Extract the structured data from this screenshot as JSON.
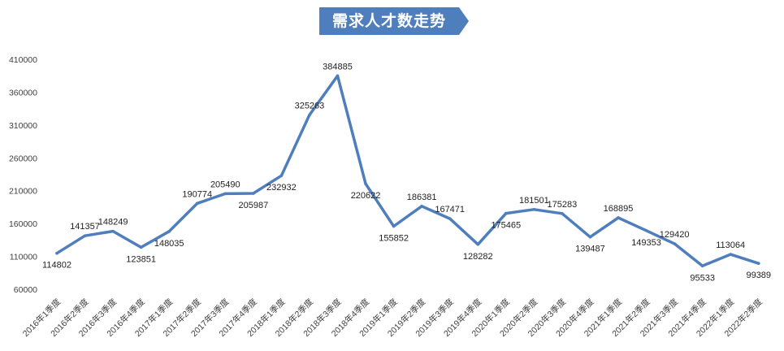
{
  "chart_data": {
    "type": "line",
    "title": "需求人才数走势",
    "xlabel": "",
    "ylabel": "",
    "ylim": [
      60000,
      410000
    ],
    "yticks": [
      60000,
      110000,
      160000,
      210000,
      260000,
      310000,
      360000,
      410000
    ],
    "ytick_labels": [
      "60000",
      "110000",
      "160000",
      "210000",
      "260000",
      "310000",
      "360000",
      "410000"
    ],
    "grid": false,
    "legend": "none",
    "categories": [
      "2016年1季度",
      "2016年2季度",
      "2016年3季度",
      "2016年4季度",
      "2017年1季度",
      "2017年2季度",
      "2017年3季度",
      "2017年4季度",
      "2018年1季度",
      "2018年2季度",
      "2018年3季度",
      "2018年4季度",
      "2019年1季度",
      "2019年2季度",
      "2019年3季度",
      "2019年4季度",
      "2020年1季度",
      "2020年2季度",
      "2020年3季度",
      "2020年4季度",
      "2021年1季度",
      "2021年2季度",
      "2021年3季度",
      "2021年4季度",
      "2022年1季度",
      "2022年2季度"
    ],
    "series": [
      {
        "values": [
          114802,
          141357,
          148249,
          123851,
          148035,
          190774,
          205490,
          205987,
          232932,
          325263,
          384885,
          220622,
          155852,
          186381,
          167471,
          128282,
          175465,
          181501,
          175283,
          139487,
          168895,
          149353,
          129420,
          95533,
          113064,
          99389
        ],
        "labels": [
          "114802",
          "141357",
          "148249",
          "123851",
          "148035",
          "190774",
          "205490",
          "205987",
          "232932",
          "325263",
          "384885",
          "220622",
          "155852",
          "186381",
          "167471",
          "128282",
          "175465",
          "181501",
          "175283",
          "139487",
          "168895",
          "149353",
          "129420",
          "95533",
          "113064",
          "99389"
        ],
        "label_positions": [
          "below",
          "above",
          "above",
          "below",
          "below",
          "above",
          "above",
          "below",
          "below",
          "above",
          "above",
          "below",
          "below",
          "above",
          "above",
          "below",
          "below",
          "above",
          "above",
          "below",
          "above",
          "below",
          "above",
          "below",
          "above",
          "below"
        ]
      }
    ],
    "colors": {
      "line": "#4F7EBD",
      "title_banner": "#4F7EBD",
      "title_text": "#FFFFFF",
      "axis_text": "#404040",
      "data_label": "#222222"
    }
  }
}
